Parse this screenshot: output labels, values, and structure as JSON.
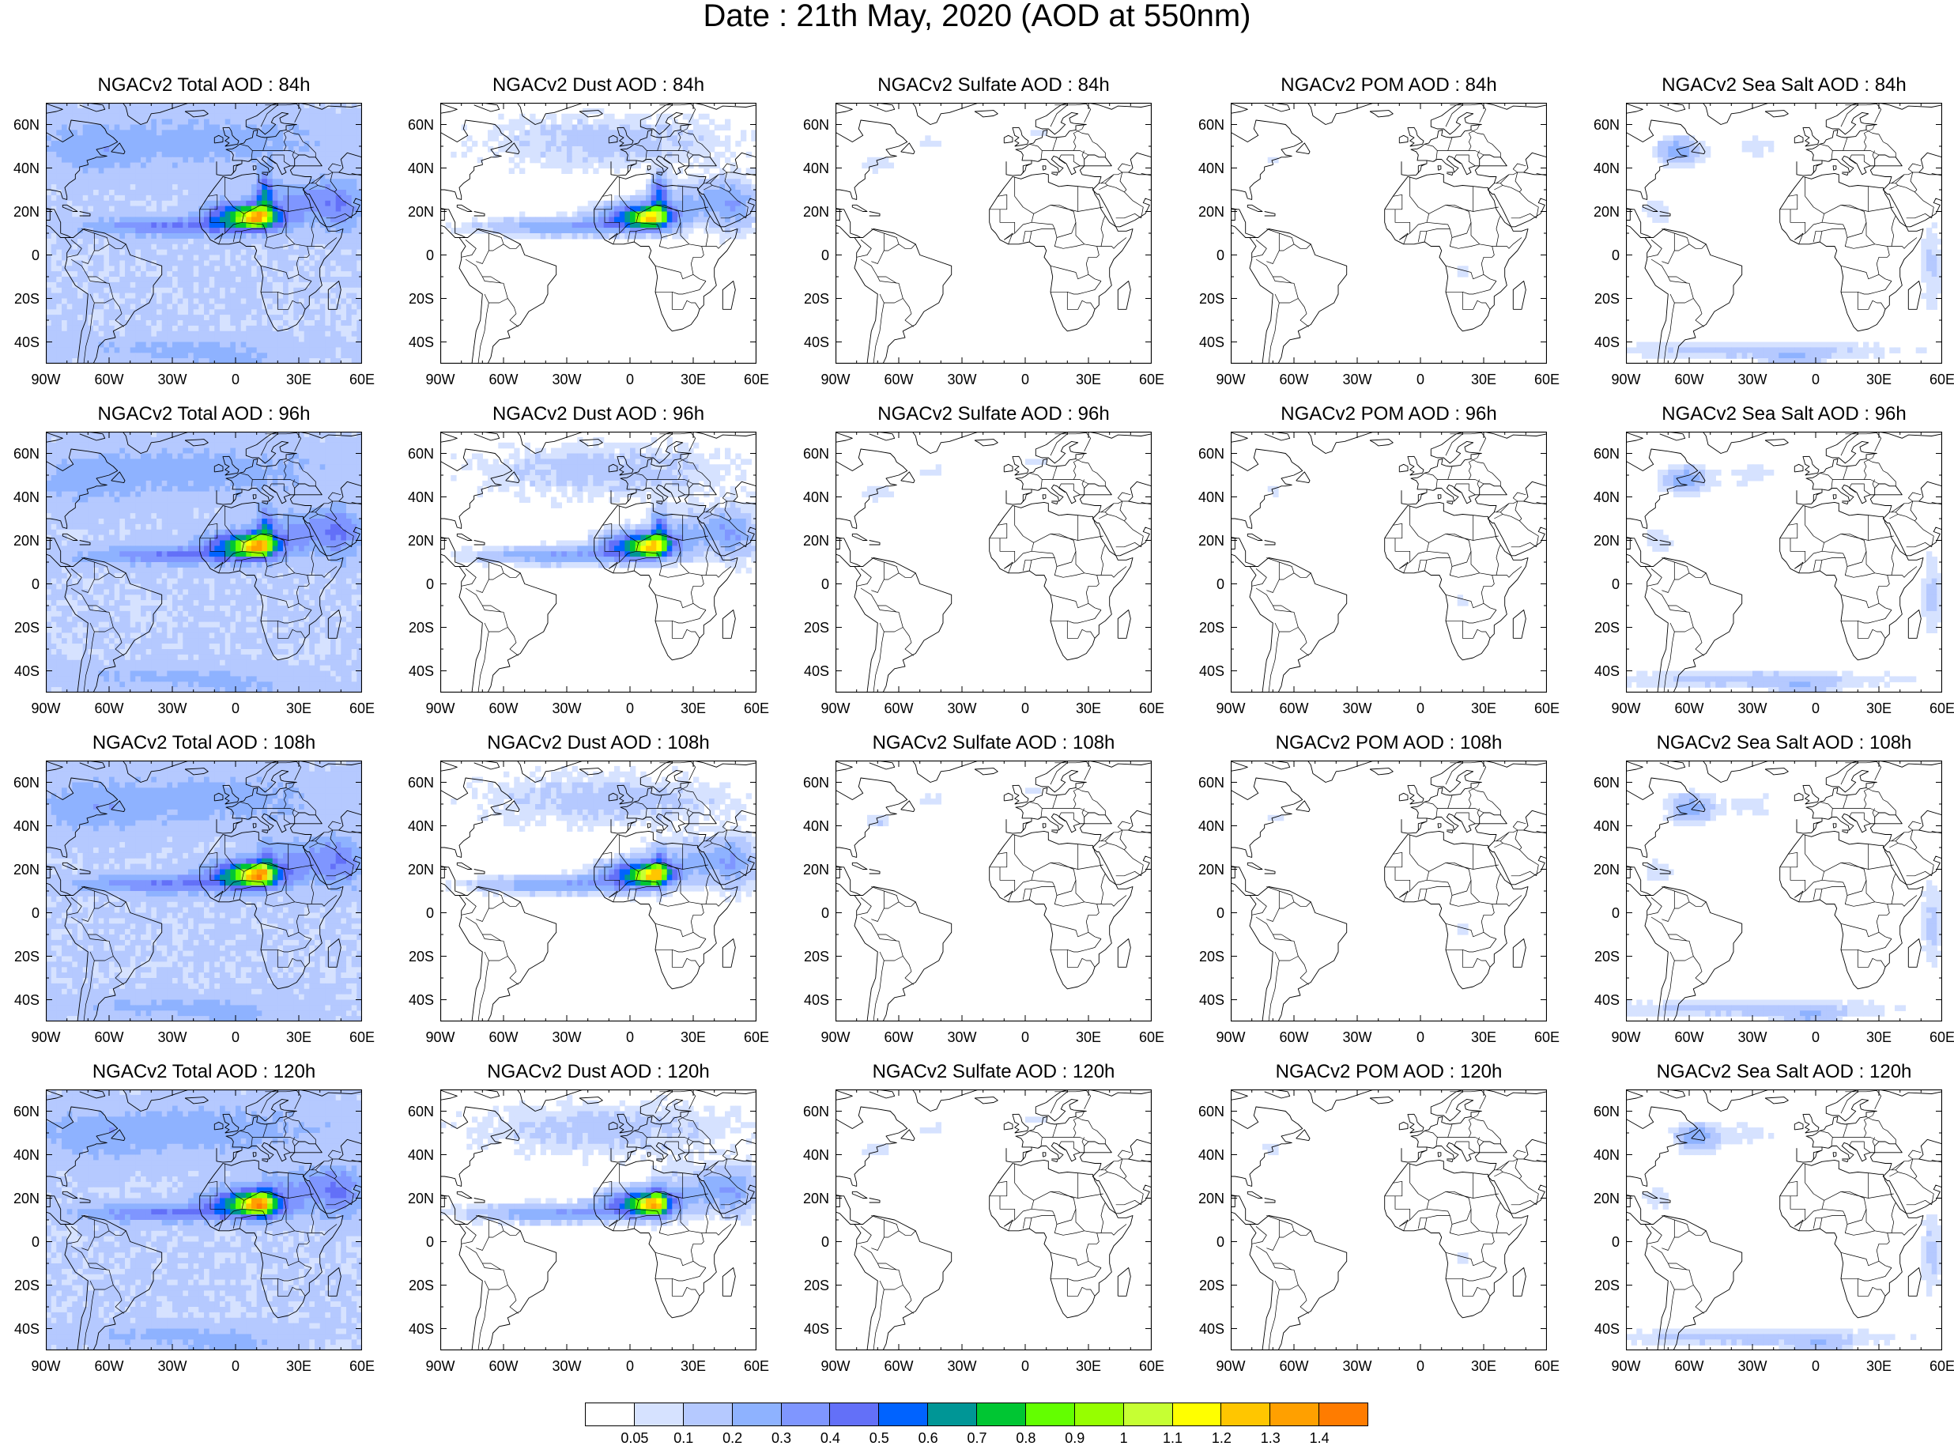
{
  "figure": {
    "title": "Date : 21th May, 2020 (AOD at 550nm)"
  },
  "colors": {
    "land_outline": "#000000",
    "background": "#ffffff"
  },
  "axes": {
    "lat_labels": [
      "60N",
      "40N",
      "20N",
      "0",
      "20S",
      "40S"
    ],
    "lon_labels": [
      "90W",
      "60W",
      "30W",
      "0",
      "30E",
      "60E"
    ],
    "lat_range": [
      -50,
      70
    ],
    "lon_range": [
      -90,
      60
    ]
  },
  "colorbar": {
    "labels": [
      "0.05",
      "0.1",
      "0.2",
      "0.3",
      "0.4",
      "0.5",
      "0.6",
      "0.7",
      "0.8",
      "0.9",
      "1",
      "1.1",
      "1.2",
      "1.3",
      "1.4"
    ],
    "colors": [
      "#ffffff",
      "#d6e2ff",
      "#b5c9ff",
      "#8eb2ff",
      "#7f96ff",
      "#6370f8",
      "#0063ff",
      "#009696",
      "#00c633",
      "#63ff00",
      "#96ff00",
      "#c6ff33",
      "#ffff00",
      "#ffc600",
      "#ffa000",
      "#ff7c00",
      "#ff1900"
    ]
  },
  "panels": [
    {
      "title": "NGACv2 Total AOD : 84h",
      "species": "total"
    },
    {
      "title": "NGACv2 Dust AOD : 84h",
      "species": "dust"
    },
    {
      "title": "NGACv2 Sulfate AOD : 84h",
      "species": "sulfate"
    },
    {
      "title": "NGACv2 POM AOD : 84h",
      "species": "pom"
    },
    {
      "title": "NGACv2 Sea Salt AOD : 84h",
      "species": "seasalt"
    },
    {
      "title": "NGACv2 Total AOD : 96h",
      "species": "total"
    },
    {
      "title": "NGACv2 Dust AOD : 96h",
      "species": "dust"
    },
    {
      "title": "NGACv2 Sulfate AOD : 96h",
      "species": "sulfate"
    },
    {
      "title": "NGACv2 POM AOD : 96h",
      "species": "pom"
    },
    {
      "title": "NGACv2 Sea Salt AOD : 96h",
      "species": "seasalt"
    },
    {
      "title": "NGACv2 Total AOD : 108h",
      "species": "total"
    },
    {
      "title": "NGACv2 Dust AOD : 108h",
      "species": "dust"
    },
    {
      "title": "NGACv2 Sulfate AOD : 108h",
      "species": "sulfate"
    },
    {
      "title": "NGACv2 POM AOD : 108h",
      "species": "pom"
    },
    {
      "title": "NGACv2 Sea Salt AOD : 108h",
      "species": "seasalt"
    },
    {
      "title": "NGACv2 Total AOD : 120h",
      "species": "total"
    },
    {
      "title": "NGACv2 Dust AOD : 120h",
      "species": "dust"
    },
    {
      "title": "NGACv2 Sulfate AOD : 120h",
      "species": "sulfate"
    },
    {
      "title": "NGACv2 POM AOD : 120h",
      "species": "pom"
    },
    {
      "title": "NGACv2 Sea Salt  AOD : 120h",
      "species": "seasalt"
    }
  ]
}
